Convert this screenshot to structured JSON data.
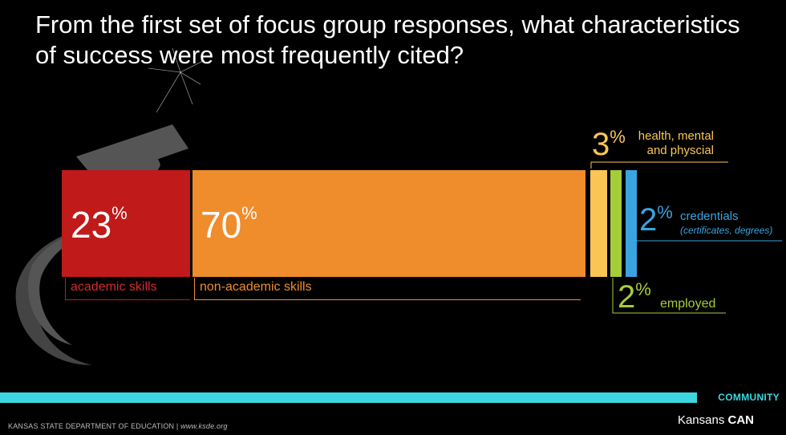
{
  "title": "From the first set of focus group responses, what characteristics of success were most frequently cited?",
  "colors": {
    "academic": "#c01a1a",
    "non_academic": "#ef8c2c",
    "health": "#fbc556",
    "employed": "#a6cc3a",
    "credentials": "#3aa4e0",
    "footer_band": "#3dd6e0"
  },
  "chart_data": {
    "type": "bar",
    "orientation": "horizontal-stacked",
    "categories": [
      "academic skills",
      "non-academic skills",
      "health, mental and physcial",
      "employed",
      "credentials (certificates, degrees)"
    ],
    "values": [
      23,
      70,
      3,
      2,
      2
    ],
    "unit": "%",
    "labels": {
      "academic": {
        "num": "23",
        "sup": "%",
        "name": "academic skills"
      },
      "non_academic": {
        "num": "70",
        "sup": "%",
        "name": "non-academic skills"
      },
      "health": {
        "num": "3",
        "sup": "%",
        "name_line1": "health, mental",
        "name_line2": "and physcial"
      },
      "employed": {
        "num": "2",
        "sup": "%",
        "name": "employed"
      },
      "credentials": {
        "num": "2",
        "sup": "%",
        "name": "credentials",
        "sub": "(certificates, degrees)"
      }
    }
  },
  "footer": {
    "community": "COMMUNITY",
    "brand_prefix": "Kansans ",
    "brand_bold": "CAN",
    "org": "KANSAS STATE DEPARTMENT OF EDUCATION | ",
    "url": "www.ksde.org"
  }
}
